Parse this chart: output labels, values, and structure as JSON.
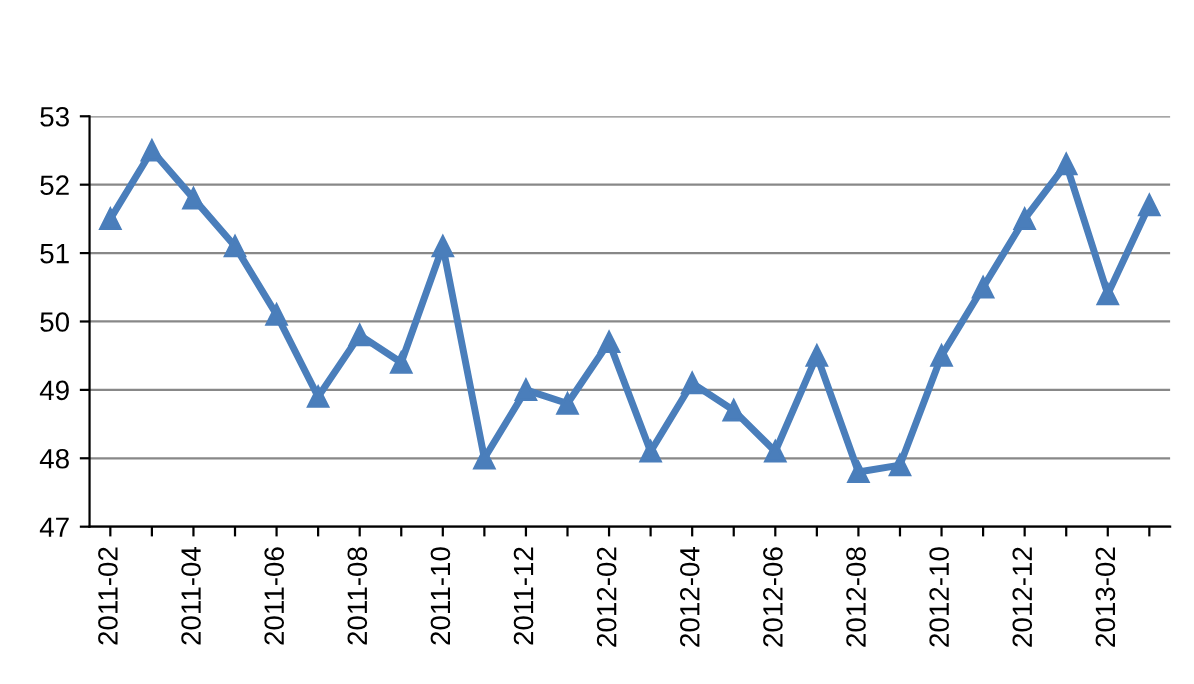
{
  "chart_data": {
    "type": "line",
    "categories": [
      "2011-02",
      null,
      "2011-04",
      null,
      "2011-06",
      null,
      "2011-08",
      null,
      "2011-10",
      null,
      "2011-12",
      null,
      "2012-02",
      null,
      "2012-04",
      null,
      "2012-06",
      null,
      "2012-08",
      null,
      "2012-10",
      null,
      "2012-12",
      null,
      "2013-02",
      null
    ],
    "series": [
      {
        "color": "#4a7ebb",
        "values": [
          51.5,
          52.5,
          51.8,
          51.1,
          50.1,
          48.9,
          49.8,
          49.4,
          51.1,
          48.0,
          49.0,
          48.8,
          49.7,
          48.1,
          49.1,
          48.7,
          48.1,
          49.5,
          47.8,
          47.9,
          49.5,
          50.5,
          51.5,
          52.3,
          50.4,
          51.7
        ]
      }
    ],
    "ylim": [
      47,
      53
    ],
    "yticks": [
      47,
      48,
      49,
      50,
      51,
      52,
      53
    ],
    "grid": "y",
    "marker": "triangle",
    "line_style": "solid",
    "legend": false
  }
}
